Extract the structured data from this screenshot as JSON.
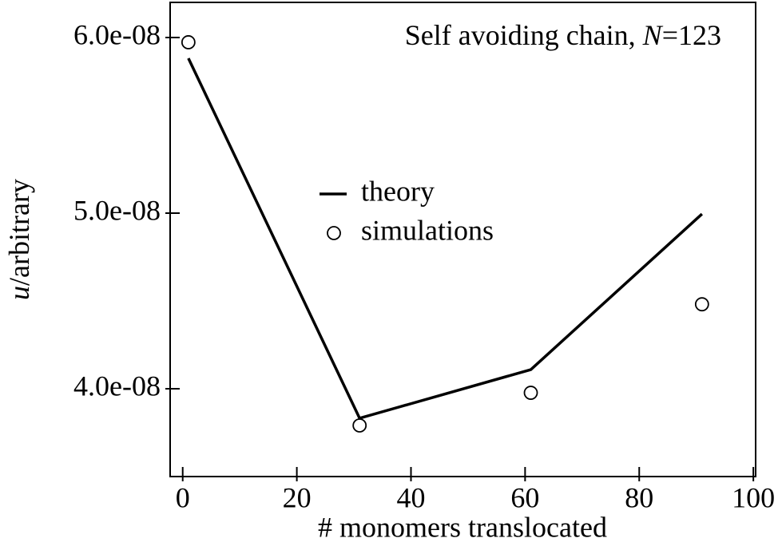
{
  "chart_data": {
    "type": "line",
    "title_parts": [
      "Self avoiding chain, ",
      "N",
      "=123"
    ],
    "xlabel": "# monomers translocated",
    "ylabel_parts": [
      "u",
      "/arbitrary"
    ],
    "x": [
      1,
      31,
      61,
      91
    ],
    "series": [
      {
        "name": "theory",
        "color": "#000000",
        "style": "line",
        "values": [
          5.882e-08,
          3.832e-08,
          4.109e-08,
          4.995e-08
        ]
      },
      {
        "name": "simulations",
        "color": "#000000",
        "style": "open-circle",
        "values": [
          5.973e-08,
          3.791e-08,
          3.977e-08,
          4.481e-08
        ]
      }
    ],
    "xlim": [
      -2.2,
      100.4
    ],
    "ylim": [
      3.5e-08,
      6.2e-08
    ],
    "xticks": [
      0,
      20,
      40,
      60,
      80,
      100
    ],
    "yticks": [
      {
        "value": 4e-08,
        "label": "4.0e-08"
      },
      {
        "value": 5e-08,
        "label": "5.0e-08"
      },
      {
        "value": 6e-08,
        "label": "6.0e-08"
      }
    ],
    "grid": false
  }
}
